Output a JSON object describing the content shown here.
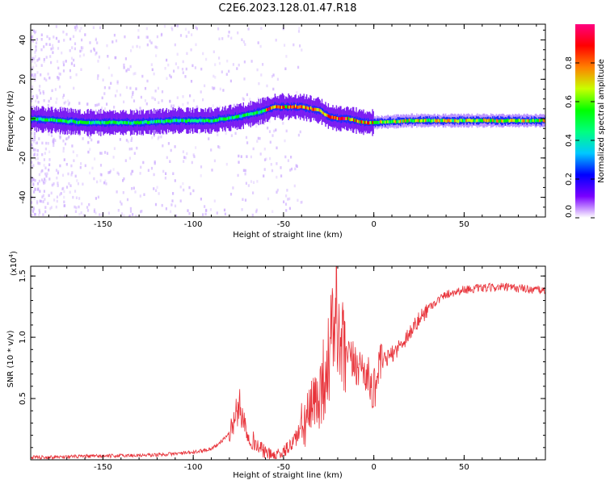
{
  "title": "C2E6.2023.128.01.47.R18",
  "chart_data": [
    {
      "type": "heatmap",
      "xlabel": "Height of straight line (km)",
      "ylabel": "Frequency (Hz)",
      "xlim": [
        -190,
        95
      ],
      "ylim": [
        -50,
        48
      ],
      "xticks": [
        -150,
        -100,
        -50,
        0,
        50
      ],
      "xtick_labels": [
        "-150",
        "-100",
        "-50",
        "0",
        "50"
      ],
      "yticks": [
        -40,
        -20,
        0,
        20,
        40
      ],
      "ytick_labels": [
        "-40",
        "-20",
        "0",
        "20",
        "40"
      ],
      "ridge": {
        "x": [
          -190,
          -160,
          -130,
          -110,
          -90,
          -75,
          -65,
          -55,
          -50,
          -40,
          -30,
          -25,
          -20,
          -15,
          -10,
          -5,
          0,
          20,
          50,
          95
        ],
        "y": [
          0,
          -2,
          -2,
          -1,
          -1,
          1,
          3,
          6,
          6,
          6,
          4,
          1,
          0,
          0,
          -1,
          -2,
          -2,
          -1,
          -1,
          -1
        ]
      },
      "colorbar": {
        "label": "Normalized spectral amplitude",
        "range": [
          0,
          1
        ],
        "ticks": [
          0.0,
          0.2,
          0.4,
          0.6,
          0.8
        ],
        "tick_labels": [
          "0.0",
          "0.2",
          "0.4",
          "0.6",
          "0.8"
        ],
        "colors": [
          "#ffffff",
          "#7a00ff",
          "#0000ff",
          "#00c8ff",
          "#00ff80",
          "#00ff00",
          "#c8ff00",
          "#ff8000",
          "#ff0000",
          "#ff0080"
        ]
      }
    },
    {
      "type": "line",
      "xlabel": "Height of straight line (km)",
      "ylabel": "SNR (10 * v/v)",
      "y_multiplier": "(x10",
      "y_multiplier_exp": "4",
      "y_multiplier_close": ")",
      "xlim": [
        -190,
        95
      ],
      "ylim": [
        0,
        1.58
      ],
      "xticks": [
        -150,
        -100,
        -50,
        0,
        50
      ],
      "xtick_labels": [
        "-150",
        "-100",
        "-50",
        "0",
        "50"
      ],
      "yticks": [
        0.5,
        1.0,
        1.5
      ],
      "ytick_labels": [
        "0.5",
        "1.0",
        "1.5"
      ],
      "line_color": "#e8333a",
      "series": [
        {
          "name": "SNR",
          "x": [
            -190,
            -150,
            -120,
            -100,
            -90,
            -85,
            -80,
            -76,
            -74,
            -72,
            -70,
            -65,
            -60,
            -55,
            -50,
            -45,
            -40,
            -35,
            -30,
            -25,
            -22,
            -21,
            -20,
            -18,
            -15,
            -10,
            -5,
            -2,
            0,
            2,
            5,
            10,
            15,
            20,
            25,
            30,
            40,
            50,
            60,
            70,
            80,
            95
          ],
          "y": [
            0.02,
            0.03,
            0.04,
            0.06,
            0.09,
            0.14,
            0.22,
            0.38,
            0.44,
            0.32,
            0.22,
            0.12,
            0.06,
            0.03,
            0.06,
            0.14,
            0.26,
            0.38,
            0.55,
            0.82,
            1.1,
            1.52,
            0.95,
            0.88,
            0.82,
            0.78,
            0.74,
            0.62,
            0.55,
            0.72,
            0.8,
            0.86,
            0.94,
            1.04,
            1.14,
            1.24,
            1.35,
            1.39,
            1.4,
            1.41,
            1.4,
            1.38
          ]
        }
      ]
    }
  ]
}
